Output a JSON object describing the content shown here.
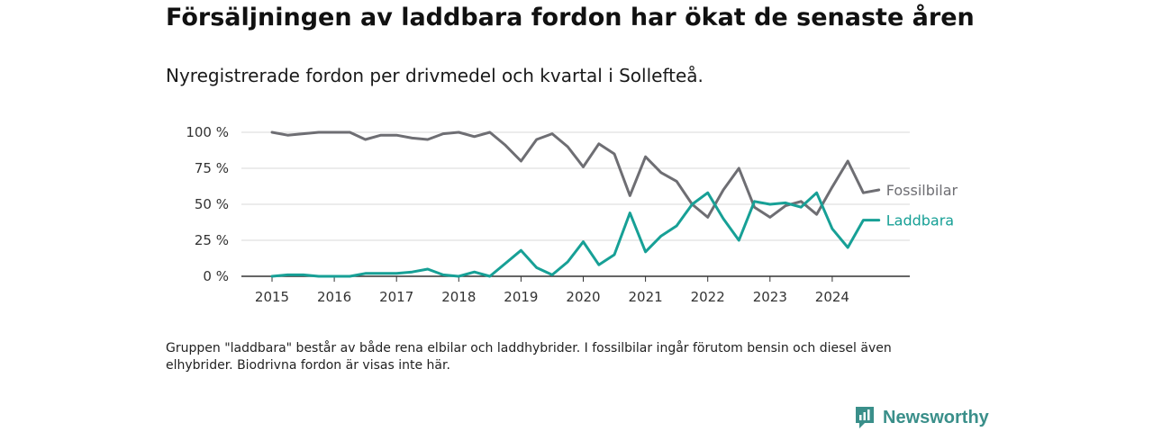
{
  "header": {
    "title": "Försäljningen av laddbara fordon har ökat de senaste åren",
    "subtitle": "Nyregistrerade fordon per drivmedel och kvartal i Sollefteå."
  },
  "footnote": {
    "text": "Gruppen \"laddbara\" består av både rena elbilar och laddhybrider. I fossilbilar ingår förutom bensin och diesel även elhybrider. Biodrivna fordon är visas inte här."
  },
  "brand": {
    "name": "Newsworthy"
  },
  "colors": {
    "fossil": "#6e6e73",
    "laddbara": "#17a096",
    "grid": "#d9d9d9",
    "axis": "#333333"
  },
  "chart_data": {
    "type": "line",
    "title": "Nyregistrerade fordon per drivmedel och kvartal i Sollefteå.",
    "xlabel": "",
    "ylabel": "",
    "x_start": 2015.0,
    "x_step": 0.25,
    "xlim": [
      2014.8,
      2025.0
    ],
    "ylim": [
      0,
      100
    ],
    "grid": true,
    "x_ticks": [
      2015,
      2016,
      2017,
      2018,
      2019,
      2020,
      2021,
      2022,
      2023,
      2024
    ],
    "x_tick_labels": [
      "2015",
      "2016",
      "2017",
      "2018",
      "2019",
      "2020",
      "2021",
      "2022",
      "2023",
      "2024"
    ],
    "y_ticks": [
      0,
      25,
      50,
      75,
      100
    ],
    "y_tick_labels": [
      "0 %",
      "25 %",
      "50 %",
      "75 %",
      "100 %"
    ],
    "series": [
      {
        "name": "Fossilbilar",
        "color_key": "fossil",
        "values": [
          100,
          98,
          99,
          100,
          100,
          100,
          95,
          98,
          98,
          96,
          95,
          99,
          100,
          97,
          100,
          91,
          80,
          95,
          99,
          90,
          76,
          92,
          85,
          56,
          83,
          72,
          66,
          50,
          41,
          60,
          75,
          48,
          41,
          49,
          52,
          43,
          62,
          80,
          58,
          60
        ]
      },
      {
        "name": "Laddbara",
        "color_key": "laddbara",
        "values": [
          0,
          1,
          1,
          0,
          0,
          0,
          2,
          2,
          2,
          3,
          5,
          1,
          0,
          3,
          0,
          9,
          18,
          6,
          1,
          10,
          24,
          8,
          15,
          44,
          17,
          28,
          35,
          50,
          58,
          40,
          25,
          52,
          50,
          51,
          48,
          58,
          33,
          20,
          39,
          39
        ]
      }
    ]
  }
}
